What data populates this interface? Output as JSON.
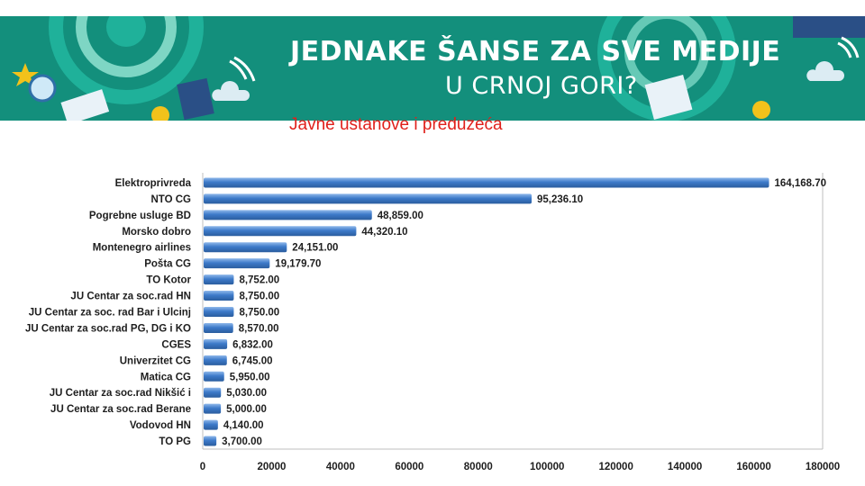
{
  "header": {
    "title": "JEDNAKE ŠANSE  ZA SVE MEDIJE",
    "subtitle": "U CRNOJ GORI?"
  },
  "chart_data": {
    "type": "bar",
    "orientation": "horizontal",
    "title": "Javne ustanove i preduzeća",
    "categories": [
      "Elektroprivreda",
      "NTO CG",
      "Pogrebne usluge BD",
      "Morsko dobro",
      "Montenegro airlines",
      "Pošta CG",
      "TO Kotor",
      "JU Centar za soc.rad HN",
      "JU Centar za soc. rad Bar i Ulcinj",
      "JU Centar za soc.rad PG, DG i KO",
      "CGES",
      "Univerzitet CG",
      "Matica CG",
      "JU Centar za soc.rad Nikšić i",
      "JU Centar za soc.rad Berane",
      "Vodovod HN",
      "TO PG"
    ],
    "values": [
      164168.7,
      95236.1,
      48859.0,
      44320.1,
      24151.0,
      19179.7,
      8752.0,
      8750.0,
      8750.0,
      8570.0,
      6832.0,
      6745.0,
      5950.0,
      5030.0,
      5000.0,
      4140.0,
      3700.0
    ],
    "value_labels": [
      "164,168.70",
      "95,236.10",
      "48,859.00",
      "44,320.10",
      "24,151.00",
      "19,179.70",
      "8,752.00",
      "8,750.00",
      "8,750.00",
      "8,570.00",
      "6,832.00",
      "6,745.00",
      "5,950.00",
      "5,030.00",
      "5,000.00",
      "4,140.00",
      "3,700.00"
    ],
    "xlim": [
      0,
      180000
    ],
    "x_ticks": [
      0,
      20000,
      40000,
      60000,
      80000,
      100000,
      120000,
      140000,
      160000,
      180000
    ],
    "x_tick_labels": [
      "0",
      "20000",
      "40000",
      "60000",
      "80000",
      "100000",
      "120000",
      "140000",
      "160000",
      "180000"
    ],
    "grid": false,
    "legend": "none",
    "colors": {
      "bar": "#3d7ac9",
      "bar_light": "#8fb8ea",
      "bar_dark": "#2a5d9e",
      "axis": "#bfbfbf",
      "title": "#e0201b",
      "banner": "#138f7c"
    }
  }
}
